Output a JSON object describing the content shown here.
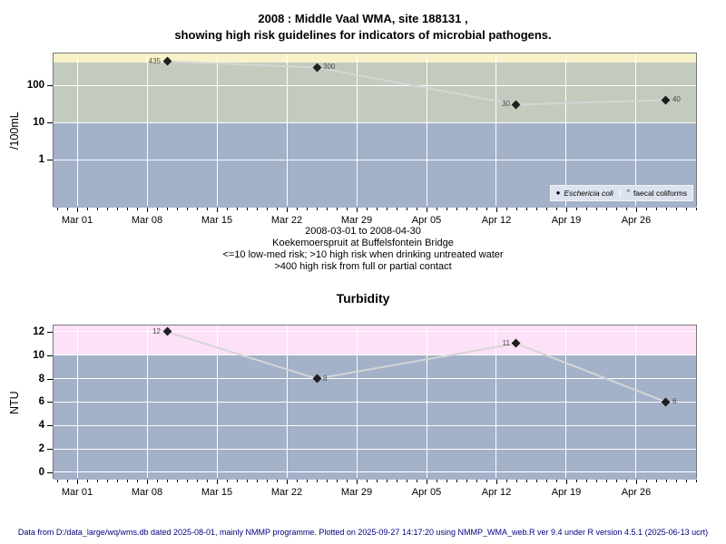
{
  "header": {
    "title_line1": "2008 : Middle Vaal WMA, site 188131 ,",
    "title_line2": "showing high risk guidelines for indicators of microbial pathogens."
  },
  "subtitle": {
    "line1": "2008-03-01 to 2008-04-30",
    "line2": "Koekemoerspruit at Buffelsfontein Bridge",
    "line3": "<=10 low-med risk; >10 high risk when drinking untreated water",
    "line4": ">400 high risk from full or partial contact"
  },
  "footer": {
    "text": "Data from D:/data_large/wq/wms.db dated 2025-08-01, mainly NMMP programme. Plotted on 2025-09-27 14:17:20 using NMMP_WMA_web.R ver 9.4 under R version 4.5.1 (2025-06-13 ucrt)"
  },
  "colors": {
    "band_high_contact_yellow": "#f8f2cb",
    "band_high_drinking_green": "#c3cbbe",
    "band_lowmed_blue": "#a3b1c9",
    "band_turbidity_pink": "#fde1f8",
    "gridline": "#ffffff",
    "series_line": "#d6d6d6",
    "marker": "#1f1f1f",
    "legend_bg": "#dce3ee",
    "footer_text": "#000080",
    "plot_border": "#777777"
  },
  "x_axis": {
    "xlim_days": [
      -2.364,
      62.182
    ],
    "major_days": [
      0,
      7,
      14,
      21,
      28,
      35,
      42,
      49,
      56
    ],
    "major_labels": [
      "Mar 01",
      "Mar 08",
      "Mar 15",
      "Mar 22",
      "Mar 29",
      "Apr 05",
      "Apr 12",
      "Apr 19",
      "Apr 26"
    ],
    "minor_day_min": -2,
    "minor_day_max": 62
  },
  "chart_data": [
    {
      "type": "line",
      "name": "microbial-pathogens",
      "title": "2008 : Middle Vaal WMA, site 188131 , showing high risk guidelines for indicators of microbial pathogens.",
      "ylabel": "/100mL",
      "yscale": "log",
      "ylim": [
        0.051,
        714
      ],
      "y_ticks": [
        {
          "value": 100,
          "label": "100"
        },
        {
          "value": 10,
          "label": "10"
        },
        {
          "value": 1,
          "label": "1"
        }
      ],
      "y_gridlines": [
        100,
        10,
        1
      ],
      "bands": [
        {
          "color": "#f8f2cb",
          "from": 400,
          "to": null,
          "meaning": ">400 high risk from full or partial contact"
        },
        {
          "color": "#c3cbbe",
          "from": 10,
          "to": 400,
          "meaning": ">10 high risk when drinking untreated water"
        },
        {
          "color": "#a3b1c9",
          "from": null,
          "to": 10,
          "meaning": "<=10 low-med risk"
        }
      ],
      "series": [
        {
          "name": "Eschericia coli",
          "marker": "filled-diamond",
          "points": [
            {
              "day": 9,
              "date": "2008-03-10",
              "value": 435,
              "label": "435",
              "label_side": "left"
            },
            {
              "day": 24,
              "date": "2008-03-25",
              "value": 300,
              "label": "300",
              "label_side": "right"
            },
            {
              "day": 44,
              "date": "2008-04-14",
              "value": 30,
              "label": "30",
              "label_side": "left"
            },
            {
              "day": 59,
              "date": "2008-04-29",
              "value": 40,
              "label": "40",
              "label_side": "right"
            }
          ]
        }
      ],
      "legend": [
        {
          "marker": "filled-circle",
          "glyph": "●",
          "label": "Eschericia coli",
          "italic": true
        },
        {
          "marker": "open-circle",
          "glyph": "°",
          "label": "faecal coliforms",
          "italic": false
        }
      ],
      "legend_position": "bottom-right"
    },
    {
      "type": "line",
      "name": "turbidity",
      "title": "Turbidity",
      "ylabel": "NTU",
      "yscale": "linear",
      "ylim": [
        -0.62,
        12.54
      ],
      "y_ticks": [
        {
          "value": 0,
          "label": "0"
        },
        {
          "value": 2,
          "label": "2"
        },
        {
          "value": 4,
          "label": "4"
        },
        {
          "value": 6,
          "label": "6"
        },
        {
          "value": 8,
          "label": "8"
        },
        {
          "value": 10,
          "label": "10"
        },
        {
          "value": 12,
          "label": "12"
        }
      ],
      "y_gridlines": [
        0,
        2,
        4,
        6,
        8,
        10,
        12
      ],
      "bands": [
        {
          "color": "#fde1f8",
          "from": 10,
          "to": null,
          "meaning": "high turbidity band"
        },
        {
          "color": "#a3b1c9",
          "from": null,
          "to": 10,
          "meaning": "low-med turbidity band"
        }
      ],
      "series": [
        {
          "name": "Turbidity",
          "marker": "filled-diamond",
          "points": [
            {
              "day": 9,
              "date": "2008-03-10",
              "value": 12,
              "label": "12",
              "label_side": "left"
            },
            {
              "day": 24,
              "date": "2008-03-25",
              "value": 8,
              "label": "8",
              "label_side": "right"
            },
            {
              "day": 44,
              "date": "2008-04-14",
              "value": 11,
              "label": "11",
              "label_side": "left"
            },
            {
              "day": 59,
              "date": "2008-04-29",
              "value": 6,
              "label": "6",
              "label_side": "right"
            }
          ]
        }
      ],
      "legend": []
    }
  ]
}
